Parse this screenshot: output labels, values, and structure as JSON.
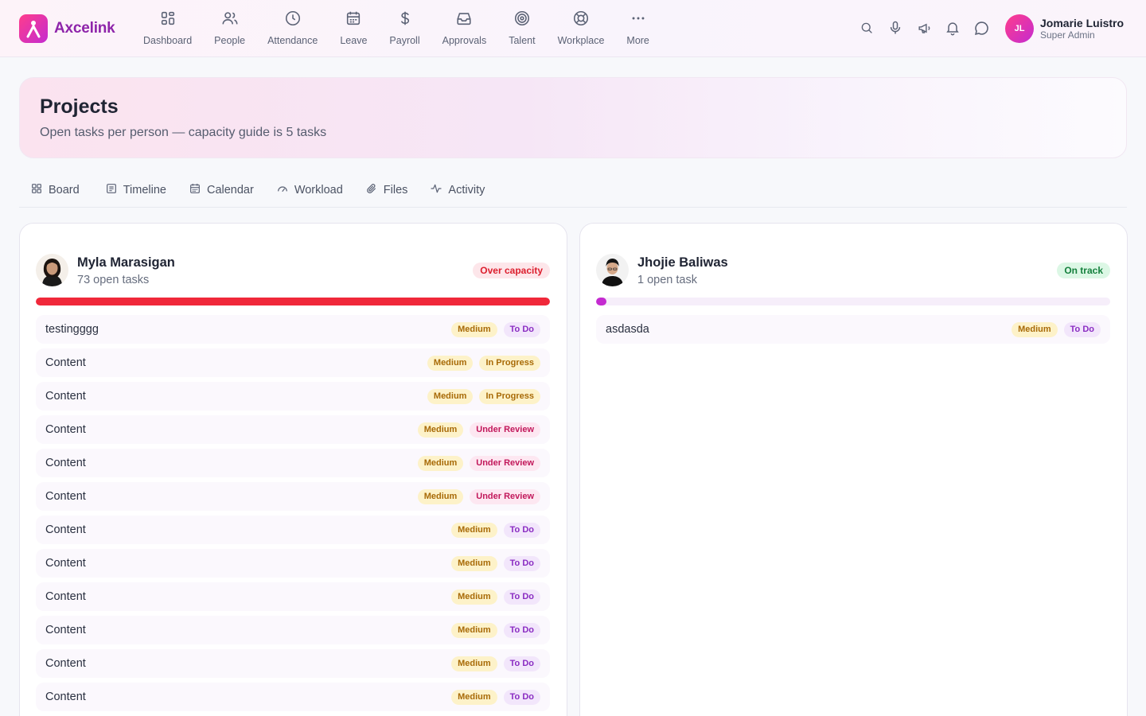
{
  "brand": {
    "name": "Axcelink",
    "color": "#8e24aa"
  },
  "nav": [
    {
      "label": "Dashboard",
      "icon": "dashboard-icon"
    },
    {
      "label": "People",
      "icon": "people-icon"
    },
    {
      "label": "Attendance",
      "icon": "clock-icon"
    },
    {
      "label": "Leave",
      "icon": "calendar-icon"
    },
    {
      "label": "Payroll",
      "icon": "dollar-icon"
    },
    {
      "label": "Approvals",
      "icon": "inbox-icon"
    },
    {
      "label": "Talent",
      "icon": "target-icon"
    },
    {
      "label": "Workplace",
      "icon": "lifebuoy-icon"
    },
    {
      "label": "More",
      "icon": "more-icon"
    }
  ],
  "top_actions": [
    "search-icon",
    "microphone-icon",
    "megaphone-icon",
    "bell-icon",
    "chat-icon"
  ],
  "user": {
    "initials": "JL",
    "name": "Jomarie Luistro",
    "role": "Super Admin"
  },
  "page": {
    "title": "Projects",
    "subtitle": "Open tasks per person — capacity guide is 5 tasks"
  },
  "tabs": [
    {
      "label": "Board",
      "icon": "grid-icon"
    },
    {
      "label": "Timeline",
      "icon": "timeline-icon"
    },
    {
      "label": "Calendar",
      "icon": "calendar-icon"
    },
    {
      "label": "Workload",
      "icon": "gauge-icon"
    },
    {
      "label": "Files",
      "icon": "paperclip-icon"
    },
    {
      "label": "Activity",
      "icon": "activity-icon"
    }
  ],
  "people": [
    {
      "name": "Myla Marasigan",
      "open_tasks": "73 open tasks",
      "status": "Over capacity",
      "status_type": "over",
      "capacity_fraction": 1.0,
      "bar_color": "#f0283a",
      "tasks": [
        {
          "name": "testingggg",
          "priority": "Medium",
          "status": "To Do"
        },
        {
          "name": "Content",
          "priority": "Medium",
          "status": "In Progress"
        },
        {
          "name": "Content",
          "priority": "Medium",
          "status": "In Progress"
        },
        {
          "name": "Content",
          "priority": "Medium",
          "status": "Under Review"
        },
        {
          "name": "Content",
          "priority": "Medium",
          "status": "Under Review"
        },
        {
          "name": "Content",
          "priority": "Medium",
          "status": "Under Review"
        },
        {
          "name": "Content",
          "priority": "Medium",
          "status": "To Do"
        },
        {
          "name": "Content",
          "priority": "Medium",
          "status": "To Do"
        },
        {
          "name": "Content",
          "priority": "Medium",
          "status": "To Do"
        },
        {
          "name": "Content",
          "priority": "Medium",
          "status": "To Do"
        },
        {
          "name": "Content",
          "priority": "Medium",
          "status": "To Do"
        },
        {
          "name": "Content",
          "priority": "Medium",
          "status": "To Do"
        }
      ]
    },
    {
      "name": "Jhojie Baliwas",
      "open_tasks": "1 open task",
      "status": "On track",
      "status_type": "ok",
      "capacity_fraction": 0.02,
      "bar_color": "#c42bd0",
      "tasks": [
        {
          "name": "asdasda",
          "priority": "Medium",
          "status": "To Do"
        }
      ]
    }
  ]
}
